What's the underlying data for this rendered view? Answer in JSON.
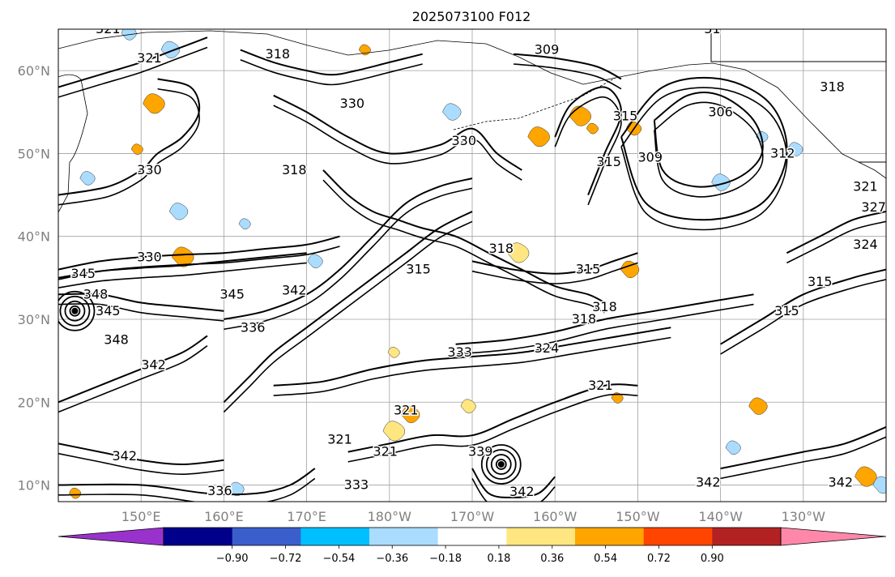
{
  "title": "2025073100 F012",
  "map": {
    "lon_range": [
      140,
      240
    ],
    "lat_range": [
      8,
      65
    ],
    "lon_ticks": [
      {
        "lon": 150,
        "label": "150°E"
      },
      {
        "lon": 160,
        "label": "160°E"
      },
      {
        "lon": 170,
        "label": "170°E"
      },
      {
        "lon": 180,
        "label": "180°W"
      },
      {
        "lon": 190,
        "label": "170°W"
      },
      {
        "lon": 200,
        "label": "160°W"
      },
      {
        "lon": 210,
        "label": "150°W"
      },
      {
        "lon": 220,
        "label": "140°W"
      },
      {
        "lon": 230,
        "label": "130°W"
      }
    ],
    "lat_ticks": [
      {
        "lat": 10,
        "label": "10°N"
      },
      {
        "lat": 20,
        "label": "20°N"
      },
      {
        "lat": 30,
        "label": "30°N"
      },
      {
        "lat": 40,
        "label": "40°N"
      },
      {
        "lat": 50,
        "label": "50°N"
      },
      {
        "lat": 60,
        "label": "60°N"
      }
    ],
    "grid_lons": [
      150,
      160,
      170,
      180,
      190,
      200,
      210,
      220,
      230
    ],
    "grid_lats": [
      10,
      20,
      30,
      40,
      50,
      60
    ],
    "contour_lines": [
      {
        "level": 309,
        "points": [
          [
            195,
            62
          ],
          [
            200,
            61.5
          ],
          [
            205,
            60.5
          ],
          [
            208,
            59
          ]
        ]
      },
      {
        "level": 318,
        "points": [
          [
            162,
            62.5
          ],
          [
            166,
            61
          ],
          [
            170,
            60
          ],
          [
            173,
            59.5
          ],
          [
            176,
            60
          ],
          [
            180,
            61
          ],
          [
            184,
            62
          ]
        ]
      },
      {
        "level": 321,
        "points": [
          [
            140,
            58
          ],
          [
            145,
            59.5
          ],
          [
            150,
            61
          ],
          [
            154,
            62.5
          ],
          [
            158,
            64
          ]
        ]
      },
      {
        "level": 330,
        "points": [
          [
            166,
            57
          ],
          [
            170,
            55
          ],
          [
            175,
            52
          ],
          [
            180,
            50
          ],
          [
            186,
            51
          ],
          [
            190,
            53
          ],
          [
            193,
            50
          ],
          [
            196,
            48
          ]
        ]
      },
      {
        "level": 330,
        "points": [
          [
            140,
            45
          ],
          [
            146,
            46
          ],
          [
            150,
            48
          ],
          [
            152,
            50
          ],
          [
            155,
            52
          ],
          [
            157,
            55
          ],
          [
            156,
            58
          ],
          [
            152,
            59
          ]
        ]
      },
      {
        "level": 318,
        "points": [
          [
            172,
            48
          ],
          [
            175,
            45
          ],
          [
            178,
            43
          ],
          [
            181,
            42
          ],
          [
            184,
            41
          ],
          [
            188,
            40
          ],
          [
            192,
            38
          ],
          [
            196,
            36
          ],
          [
            200,
            34
          ],
          [
            204,
            33
          ],
          [
            206,
            32
          ]
        ]
      },
      {
        "level": 330,
        "points": [
          [
            140,
            36
          ],
          [
            145,
            37
          ],
          [
            150,
            37.5
          ],
          [
            155,
            37.8
          ],
          [
            160,
            38
          ],
          [
            165,
            38.5
          ],
          [
            170,
            39
          ],
          [
            174,
            40
          ]
        ]
      },
      {
        "level": 333,
        "points": [
          [
            140,
            35
          ],
          [
            145,
            35.8
          ],
          [
            150,
            36.2
          ],
          [
            155,
            36.5
          ],
          [
            160,
            37
          ],
          [
            165,
            37.5
          ],
          [
            170,
            38
          ]
        ]
      },
      {
        "level": 342,
        "points": [
          [
            160,
            30
          ],
          [
            165,
            31
          ],
          [
            170,
            33
          ],
          [
            174,
            36
          ],
          [
            178,
            40
          ],
          [
            182,
            44
          ],
          [
            186,
            46
          ],
          [
            190,
            47
          ]
        ]
      },
      {
        "level": 345,
        "points": [
          [
            140,
            33
          ],
          [
            145,
            33
          ],
          [
            150,
            32
          ],
          [
            155,
            31.5
          ],
          [
            160,
            31
          ]
        ]
      },
      {
        "level": 336,
        "points": [
          [
            160,
            20
          ],
          [
            163,
            23
          ],
          [
            166,
            26
          ],
          [
            170,
            29
          ],
          [
            174,
            32
          ],
          [
            178,
            35
          ],
          [
            182,
            38
          ],
          [
            186,
            41
          ],
          [
            190,
            43
          ]
        ]
      },
      {
        "level": 333,
        "points": [
          [
            166,
            22
          ],
          [
            172,
            22.5
          ],
          [
            178,
            24
          ],
          [
            184,
            25
          ],
          [
            190,
            25.5
          ],
          [
            196,
            26
          ],
          [
            202,
            27
          ],
          [
            208,
            28
          ],
          [
            214,
            29
          ]
        ]
      },
      {
        "level": 324,
        "points": [
          [
            188,
            27
          ],
          [
            194,
            27.5
          ],
          [
            200,
            28.5
          ],
          [
            206,
            30
          ],
          [
            212,
            31
          ],
          [
            218,
            32
          ],
          [
            224,
            33
          ]
        ]
      },
      {
        "level": 315,
        "points": [
          [
            190,
            37
          ],
          [
            195,
            36
          ],
          [
            200,
            35.5
          ],
          [
            204,
            36
          ],
          [
            207,
            37
          ],
          [
            210,
            38
          ]
        ]
      },
      {
        "level": 315,
        "points": [
          [
            220,
            27
          ],
          [
            225,
            30
          ],
          [
            230,
            33
          ],
          [
            236,
            35
          ],
          [
            240,
            36
          ]
        ]
      },
      {
        "level": 324,
        "points": [
          [
            228,
            38
          ],
          [
            232,
            40
          ],
          [
            236,
            42
          ],
          [
            240,
            43
          ]
        ]
      },
      {
        "level": 306,
        "points": [
          [
            212,
            54
          ],
          [
            216,
            57
          ],
          [
            220,
            57
          ],
          [
            224,
            54
          ],
          [
            225,
            50
          ],
          [
            222,
            47
          ],
          [
            217,
            46
          ],
          [
            213,
            48
          ],
          [
            212,
            54
          ]
        ]
      },
      {
        "level": 312,
        "points": [
          [
            208,
            52
          ],
          [
            213,
            58
          ],
          [
            220,
            59
          ],
          [
            226,
            56
          ],
          [
            228,
            50
          ],
          [
            225,
            44
          ],
          [
            218,
            42
          ],
          [
            211,
            44
          ],
          [
            208,
            52
          ]
        ]
      },
      {
        "level": 315,
        "points": [
          [
            204,
            45
          ],
          [
            206,
            50
          ],
          [
            208,
            55
          ],
          [
            206,
            58
          ],
          [
            202,
            56
          ],
          [
            200,
            52
          ]
        ]
      },
      {
        "level": 321,
        "points": [
          [
            175,
            14
          ],
          [
            180,
            15
          ],
          [
            185,
            16
          ],
          [
            190,
            16
          ],
          [
            195,
            18
          ],
          [
            200,
            20
          ],
          [
            206,
            22
          ],
          [
            210,
            22
          ]
        ]
      },
      {
        "level": 342,
        "points": [
          [
            140,
            20
          ],
          [
            145,
            22
          ],
          [
            150,
            24
          ],
          [
            155,
            26
          ],
          [
            158,
            28
          ]
        ]
      },
      {
        "level": 342,
        "points": [
          [
            140,
            15
          ],
          [
            145,
            14
          ],
          [
            150,
            13
          ],
          [
            155,
            12.5
          ],
          [
            160,
            13
          ]
        ]
      },
      {
        "level": 336,
        "points": [
          [
            140,
            10
          ],
          [
            150,
            10
          ],
          [
            158,
            9
          ],
          [
            164,
            9
          ],
          [
            168,
            10
          ],
          [
            171,
            12
          ]
        ]
      },
      {
        "level": 342,
        "points": [
          [
            190,
            12
          ],
          [
            192,
            9
          ],
          [
            195,
            8.5
          ],
          [
            198,
            9
          ],
          [
            200,
            11
          ]
        ]
      },
      {
        "level": 342,
        "points": [
          [
            220,
            12
          ],
          [
            225,
            13
          ],
          [
            230,
            14
          ],
          [
            235,
            15
          ],
          [
            240,
            17
          ]
        ]
      }
    ],
    "closed_centers": [
      {
        "lon": 142,
        "lat": 31,
        "level": 348
      },
      {
        "lon": 193.5,
        "lat": 12.5,
        "level": 345
      }
    ],
    "contour_labels": [
      {
        "text": "321",
        "lon": 146,
        "lat": 64.5
      },
      {
        "text": "321",
        "lon": 151,
        "lat": 61
      },
      {
        "text": "318",
        "lon": 166.5,
        "lat": 61.5
      },
      {
        "text": "309",
        "lon": 199,
        "lat": 62
      },
      {
        "text": "31",
        "lon": 219,
        "lat": 64.5
      },
      {
        "text": "330",
        "lon": 175.5,
        "lat": 55.5
      },
      {
        "text": "330",
        "lon": 189,
        "lat": 51
      },
      {
        "text": "330",
        "lon": 151,
        "lat": 47.5
      },
      {
        "text": "318",
        "lon": 168.5,
        "lat": 47.5
      },
      {
        "text": "315",
        "lon": 206.5,
        "lat": 48.5
      },
      {
        "text": "315",
        "lon": 208.5,
        "lat": 54
      },
      {
        "text": "309",
        "lon": 211.5,
        "lat": 49
      },
      {
        "text": "306",
        "lon": 220,
        "lat": 54.5
      },
      {
        "text": "318",
        "lon": 233.5,
        "lat": 57.5
      },
      {
        "text": "312",
        "lon": 227.5,
        "lat": 49.5
      },
      {
        "text": "321",
        "lon": 237.5,
        "lat": 45.5
      },
      {
        "text": "327",
        "lon": 238.5,
        "lat": 43
      },
      {
        "text": "324",
        "lon": 237.5,
        "lat": 38.5
      },
      {
        "text": "330",
        "lon": 151,
        "lat": 37
      },
      {
        "text": "345",
        "lon": 143,
        "lat": 35
      },
      {
        "text": "348",
        "lon": 144.5,
        "lat": 32.5
      },
      {
        "text": "345",
        "lon": 146,
        "lat": 30.5
      },
      {
        "text": "348",
        "lon": 147,
        "lat": 27
      },
      {
        "text": "342",
        "lon": 151.5,
        "lat": 24
      },
      {
        "text": "345",
        "lon": 161,
        "lat": 32.5
      },
      {
        "text": "342",
        "lon": 168.5,
        "lat": 33
      },
      {
        "text": "336",
        "lon": 163.5,
        "lat": 28.5
      },
      {
        "text": "318",
        "lon": 193.5,
        "lat": 38
      },
      {
        "text": "315",
        "lon": 183.5,
        "lat": 35.5
      },
      {
        "text": "315",
        "lon": 204,
        "lat": 35.5
      },
      {
        "text": "315",
        "lon": 232,
        "lat": 34
      },
      {
        "text": "315",
        "lon": 228,
        "lat": 30.5
      },
      {
        "text": "318",
        "lon": 203.5,
        "lat": 29.5
      },
      {
        "text": "318",
        "lon": 206,
        "lat": 31
      },
      {
        "text": "333",
        "lon": 188.5,
        "lat": 25.5
      },
      {
        "text": "324",
        "lon": 199,
        "lat": 26
      },
      {
        "text": "321",
        "lon": 205.5,
        "lat": 21.5
      },
      {
        "text": "321",
        "lon": 182,
        "lat": 18.5
      },
      {
        "text": "321",
        "lon": 174,
        "lat": 15
      },
      {
        "text": "321",
        "lon": 179.5,
        "lat": 13.5
      },
      {
        "text": "339",
        "lon": 191,
        "lat": 13.5
      },
      {
        "text": "342",
        "lon": 148,
        "lat": 13
      },
      {
        "text": "333",
        "lon": 176,
        "lat": 9.5
      },
      {
        "text": "336",
        "lon": 159.5,
        "lat": 8.8
      },
      {
        "text": "342",
        "lon": 196,
        "lat": 8.7
      },
      {
        "text": "342",
        "lon": 218.5,
        "lat": 9.8
      },
      {
        "text": "342",
        "lon": 234.5,
        "lat": 9.8
      }
    ],
    "shaded_patches": [
      {
        "lon": 177,
        "lat": 62.5,
        "color": "#ffa500"
      },
      {
        "lon": 148.5,
        "lat": 64.5,
        "color": "#aadcff"
      },
      {
        "lon": 153.5,
        "lat": 62.5,
        "color": "#aadcff"
      },
      {
        "lon": 151.5,
        "lat": 56,
        "color": "#ffa500"
      },
      {
        "lon": 149.5,
        "lat": 50.5,
        "color": "#ffa500"
      },
      {
        "lon": 143.5,
        "lat": 47,
        "color": "#aadcff"
      },
      {
        "lon": 154.5,
        "lat": 43,
        "color": "#aadcff"
      },
      {
        "lon": 155,
        "lat": 37.5,
        "color": "#ffa500"
      },
      {
        "lon": 162.5,
        "lat": 41.5,
        "color": "#aadcff"
      },
      {
        "lon": 171,
        "lat": 37,
        "color": "#aadcff"
      },
      {
        "lon": 187.5,
        "lat": 55,
        "color": "#aadcff"
      },
      {
        "lon": 203,
        "lat": 54.5,
        "color": "#ffa500"
      },
      {
        "lon": 204.5,
        "lat": 53,
        "color": "#ffa500"
      },
      {
        "lon": 209.5,
        "lat": 53,
        "color": "#ffa500"
      },
      {
        "lon": 220,
        "lat": 46.5,
        "color": "#aadcff"
      },
      {
        "lon": 198,
        "lat": 52,
        "color": "#ffa500"
      },
      {
        "lon": 225,
        "lat": 52,
        "color": "#aadcff"
      },
      {
        "lon": 229,
        "lat": 50.5,
        "color": "#aadcff"
      },
      {
        "lon": 209,
        "lat": 36,
        "color": "#ffa500"
      },
      {
        "lon": 195.5,
        "lat": 38,
        "color": "#ffe680"
      },
      {
        "lon": 207.5,
        "lat": 20.5,
        "color": "#ffa500"
      },
      {
        "lon": 189.5,
        "lat": 19.5,
        "color": "#ffe680"
      },
      {
        "lon": 182.5,
        "lat": 18.5,
        "color": "#ffa500"
      },
      {
        "lon": 180.5,
        "lat": 16.5,
        "color": "#ffe680"
      },
      {
        "lon": 180.5,
        "lat": 26,
        "color": "#ffe680"
      },
      {
        "lon": 221.5,
        "lat": 14.5,
        "color": "#aadcff"
      },
      {
        "lon": 224.5,
        "lat": 19.5,
        "color": "#ffa500"
      },
      {
        "lon": 237.5,
        "lat": 11,
        "color": "#ffa500"
      },
      {
        "lon": 142,
        "lat": 9,
        "color": "#ffa500"
      },
      {
        "lon": 161.5,
        "lat": 9.5,
        "color": "#aadcff"
      },
      {
        "lon": 239.5,
        "lat": 10,
        "color": "#aadcff"
      }
    ]
  },
  "colorbar": {
    "tick_labels": [
      "−0.90",
      "−0.72",
      "−0.54",
      "−0.36",
      "−0.18",
      "0.18",
      "0.36",
      "0.54",
      "0.72",
      "0.90"
    ],
    "colors": [
      "#9932cc",
      "#00008b",
      "#3a5fcd",
      "#00bfff",
      "#aadcff",
      "#ffffff",
      "#ffe680",
      "#ffa500",
      "#ff4500",
      "#b22222",
      "#ff88aa"
    ]
  }
}
